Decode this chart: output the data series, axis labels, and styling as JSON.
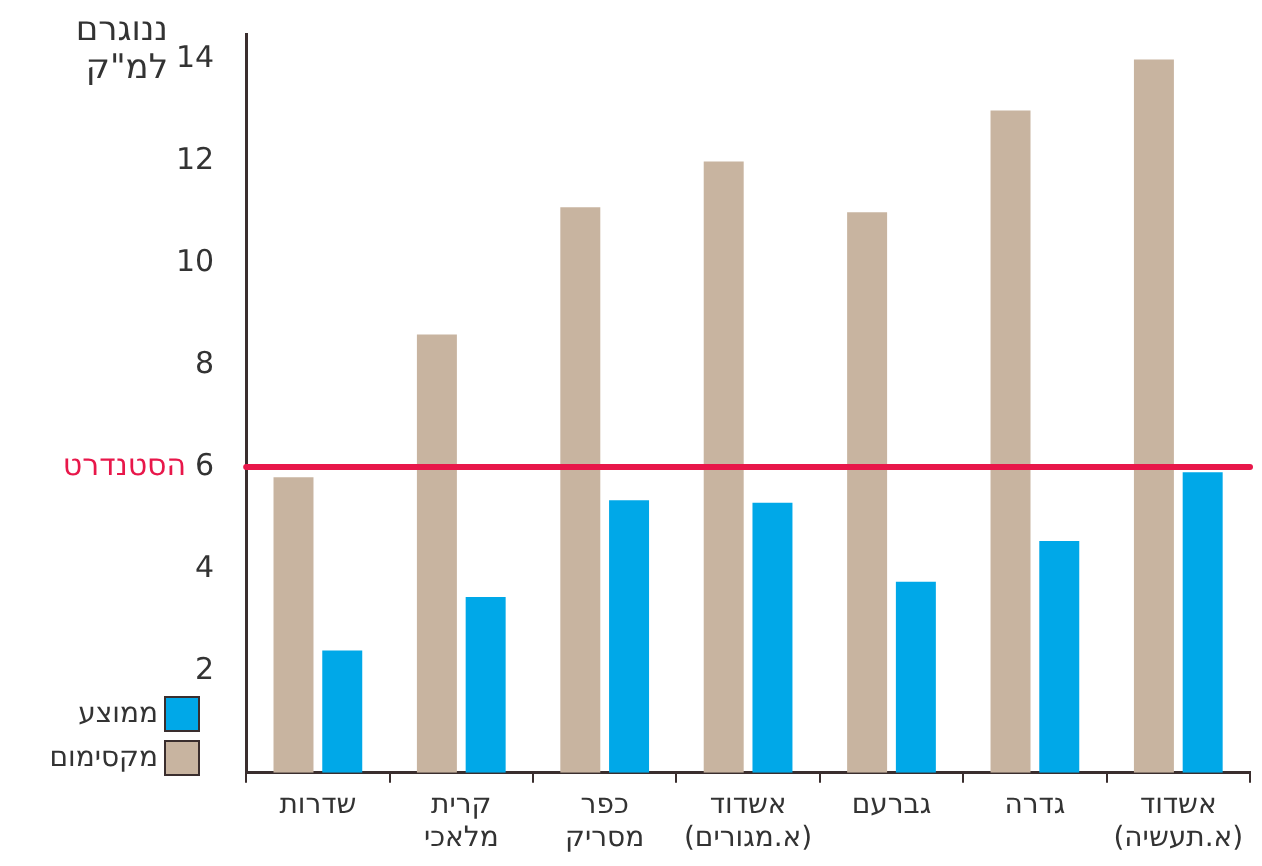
{
  "chart_data": {
    "type": "bar",
    "ylabel": "ננוגרם\nלמ\"ק",
    "categories": [
      "שדרות",
      "קרית\nמלאכי",
      "כפר\nמסריק",
      "אשדוד\n(א.מגורים)",
      "גברעם",
      "גדרה",
      "אשדוד\n(א.תעשיה)"
    ],
    "series": [
      {
        "name": "מקסימום",
        "color": "#c8b4a0",
        "values": [
          5.8,
          8.6,
          11.1,
          12.0,
          11.0,
          13.0,
          14.0
        ]
      },
      {
        "name": "ממוצע",
        "color": "#00a8e8",
        "values": [
          2.4,
          3.45,
          5.35,
          5.3,
          3.75,
          4.55,
          5.9
        ]
      }
    ],
    "ylim": [
      0,
      14.5
    ],
    "yticks": [
      2,
      4,
      6,
      8,
      10,
      12,
      14
    ],
    "ref_lines": [
      {
        "axis": "y",
        "value": 6,
        "label": "הסטנדרט",
        "color": "#e8174a"
      }
    ],
    "grid": false,
    "legend": "bottom left"
  }
}
